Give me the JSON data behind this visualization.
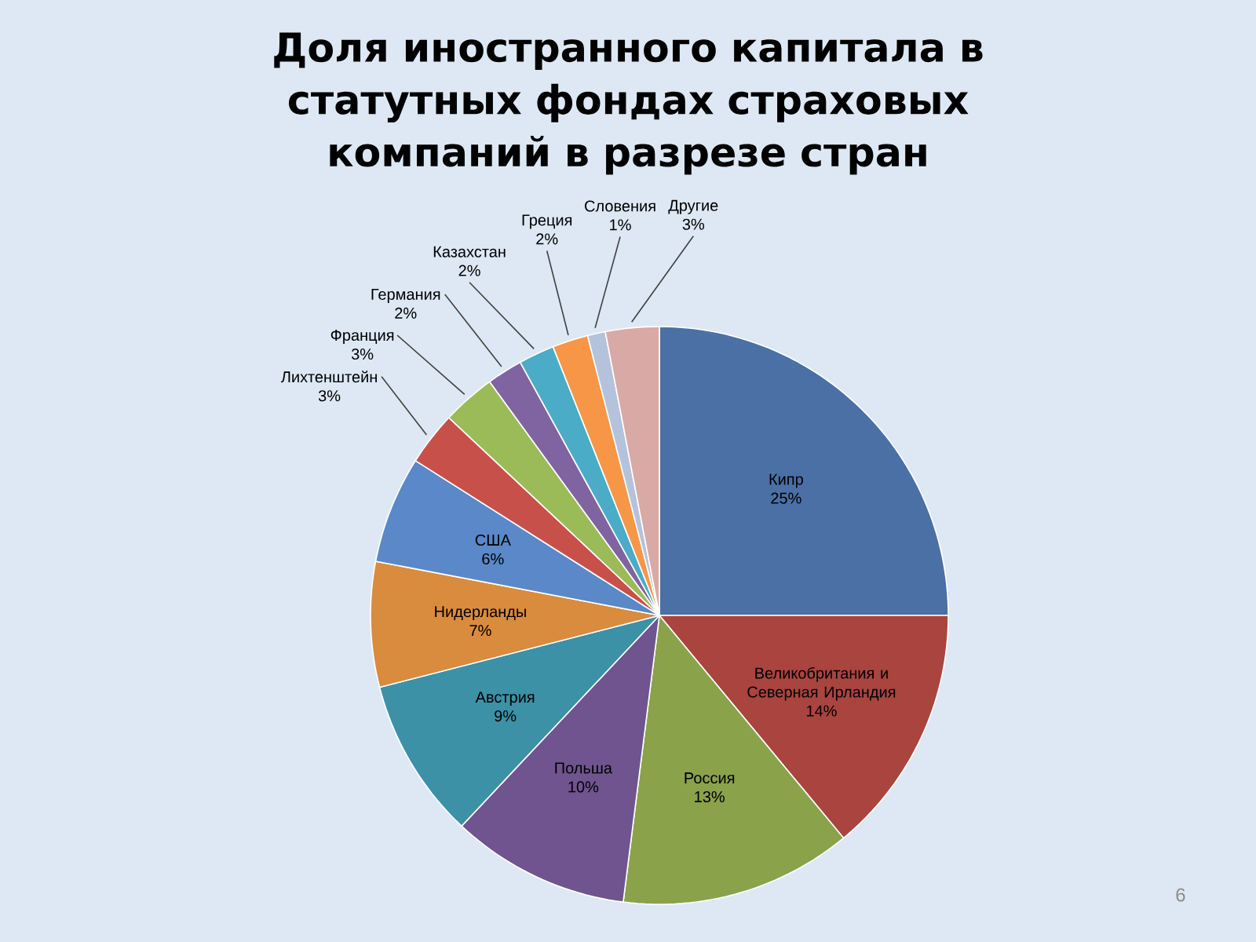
{
  "chart_data": {
    "type": "pie",
    "title": "Доля иностранного капитала в статутных фондах страховых компаний в разрезе стран",
    "categories": [
      "Кипр",
      "Великобритания и Северная Ирландия",
      "Россия",
      "Польша",
      "Австрия",
      "Нидерланды",
      "США",
      "Лихтенштейн",
      "Франция",
      "Германия",
      "Казахстан",
      "Греция",
      "Словения",
      "Другие"
    ],
    "values": [
      25,
      14,
      13,
      10,
      9,
      7,
      6,
      3,
      3,
      2,
      2,
      2,
      1,
      3
    ],
    "value_labels": [
      "25%",
      "14%",
      "13%",
      "10%",
      "9%",
      "7%",
      "6%",
      "3%",
      "3%",
      "2%",
      "2%",
      "2%",
      "1%",
      "3%"
    ],
    "colors": [
      "#4a70a6",
      "#a9443f",
      "#8aa24a",
      "#6f548f",
      "#3c91a6",
      "#d98b3e",
      "#5a88c8",
      "#c8504b",
      "#9bbb59",
      "#8064a2",
      "#4aacc6",
      "#f79646",
      "#b4c2dc",
      "#d9a9a6"
    ],
    "annotations": [
      "6"
    ]
  }
}
